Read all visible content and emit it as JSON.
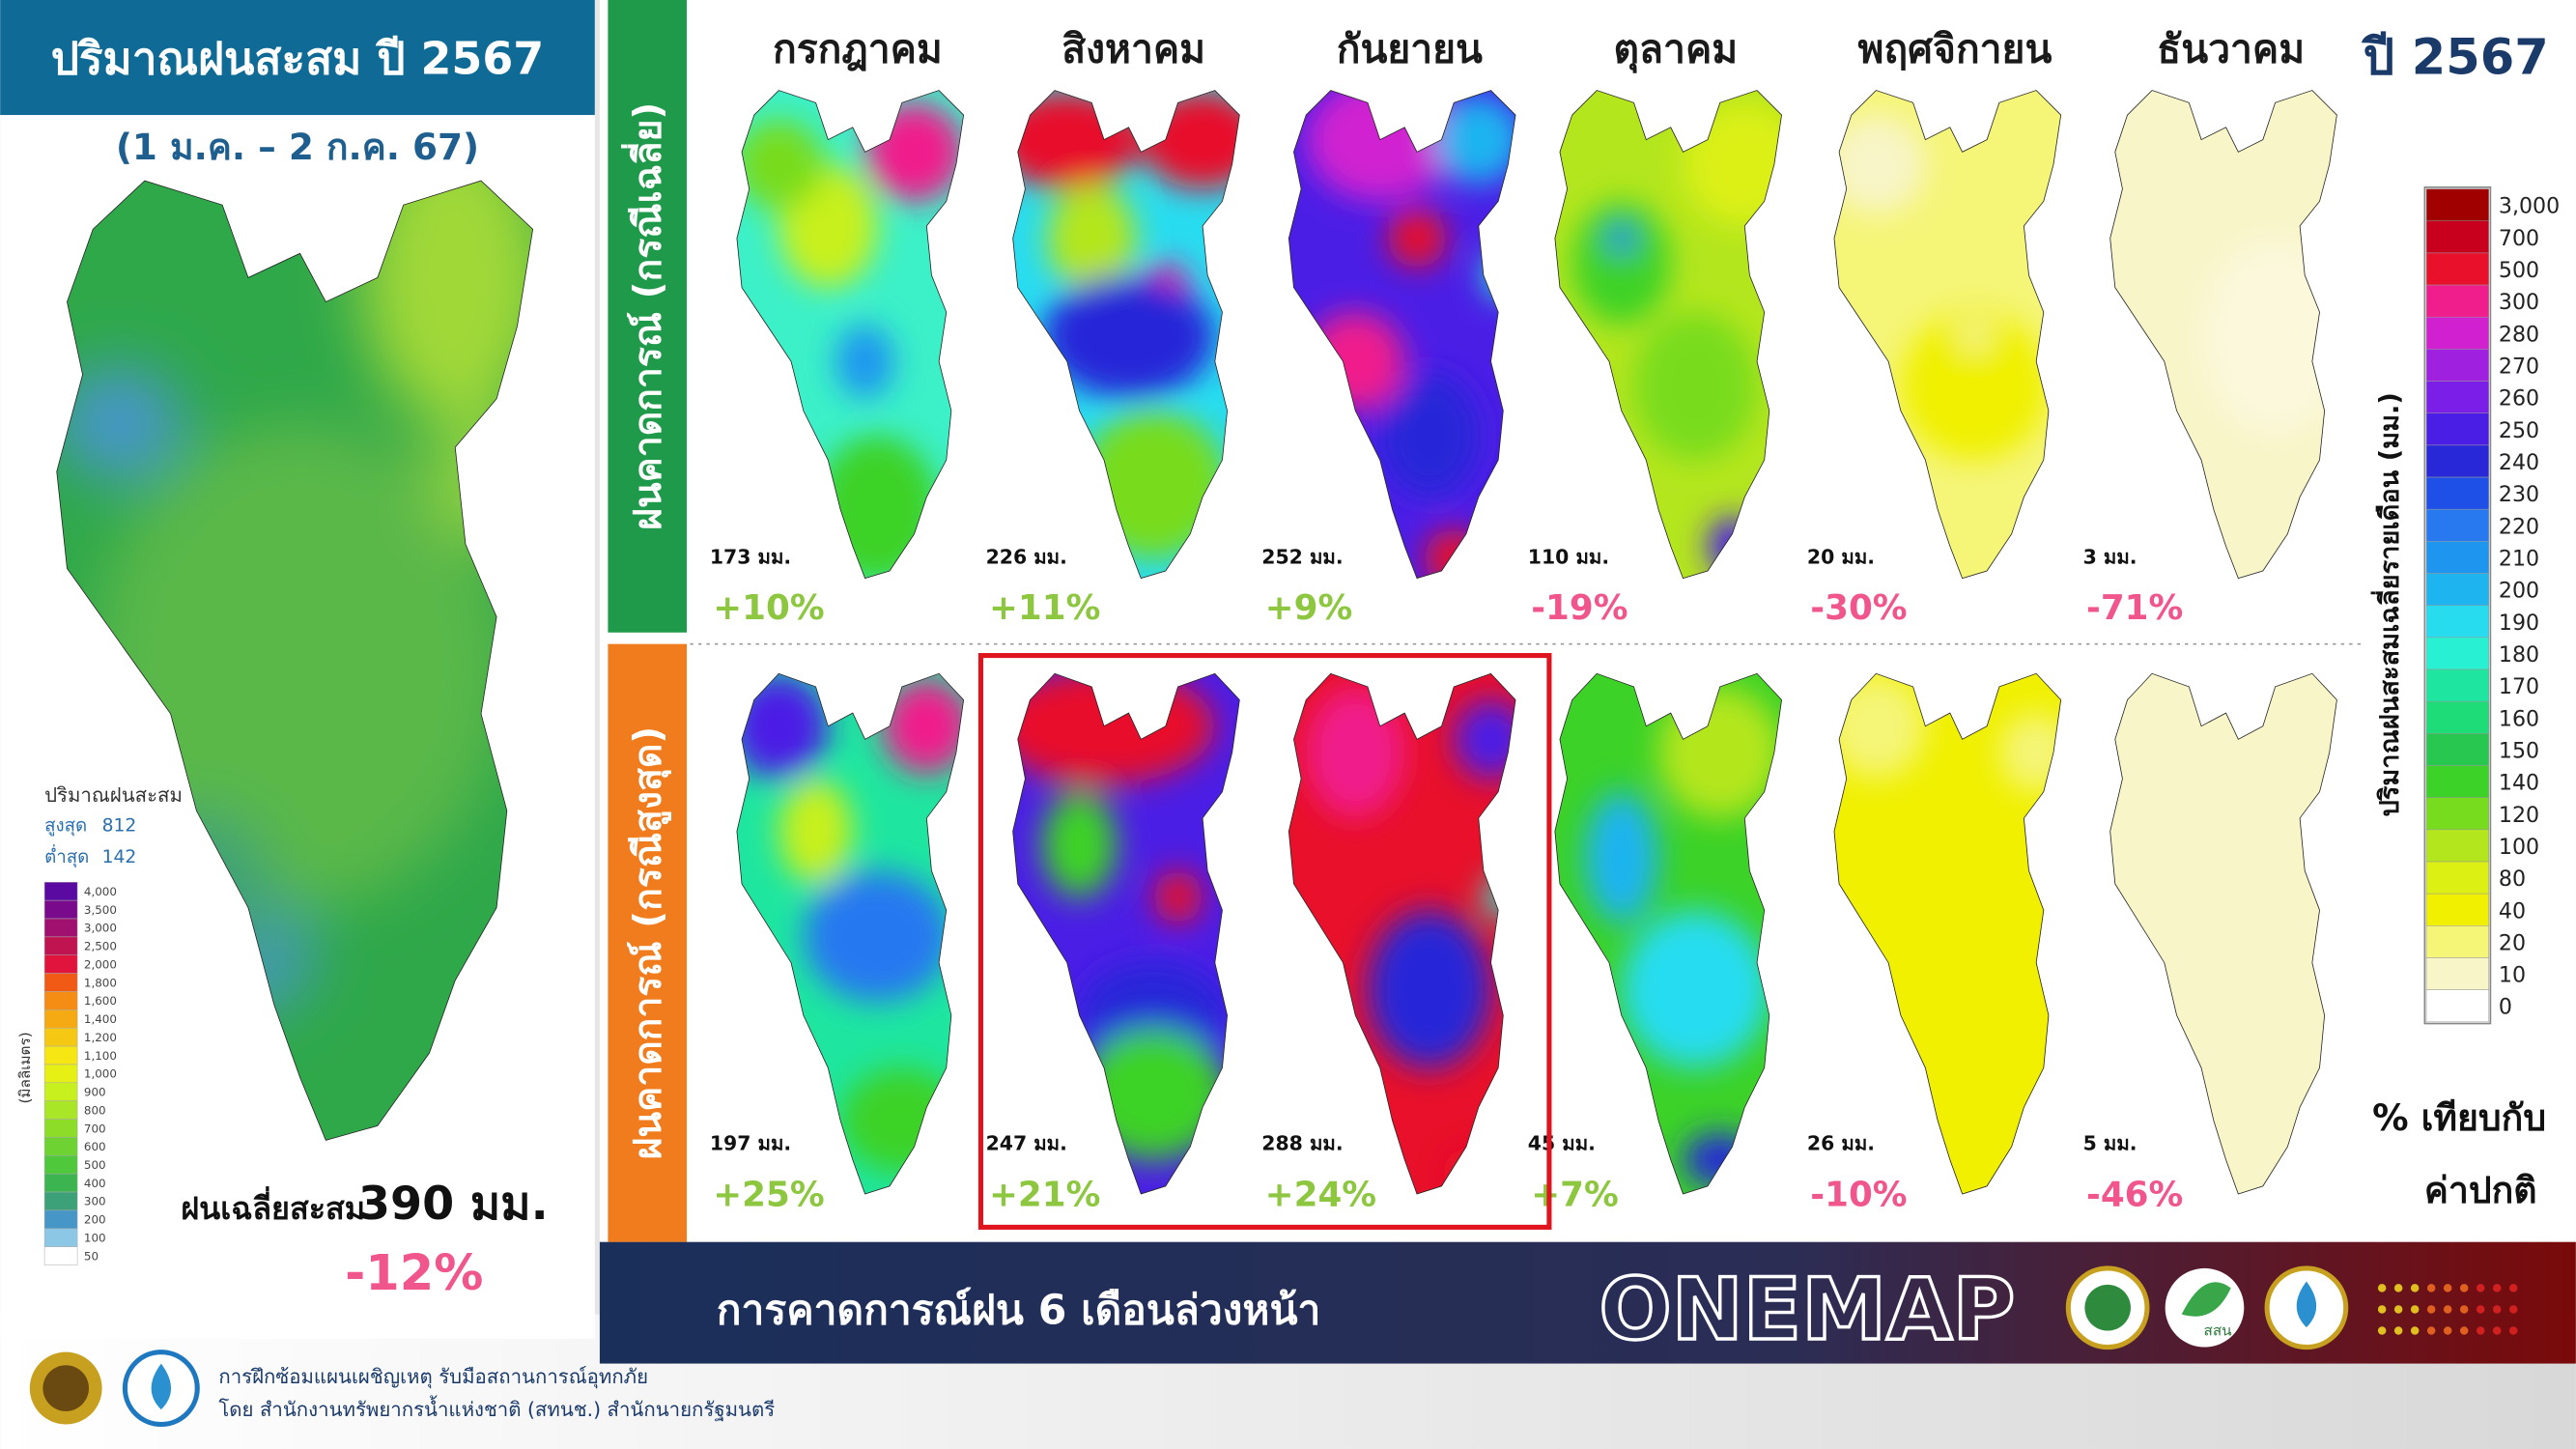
{
  "header": {
    "title": "ปริมาณฝนสะสม ปี 2567",
    "subtitle": "(1 ม.ค. – 2 ก.ค. 67)"
  },
  "summary_legend": {
    "title": "ปริมาณฝนสะสม",
    "max_label": "สูงสุด",
    "max": 812,
    "min_label": "ต่ำสุด",
    "min": 142,
    "unit": "(มิลลิเมตร)",
    "levels": [
      {
        "label": "4,000",
        "color": "#5a0aa0"
      },
      {
        "label": "3,500",
        "color": "#7a0a8c"
      },
      {
        "label": "3,000",
        "color": "#a0106e"
      },
      {
        "label": "2,500",
        "color": "#c01450"
      },
      {
        "label": "2,000",
        "color": "#e0143c"
      },
      {
        "label": "1,800",
        "color": "#f05a14"
      },
      {
        "label": "1,600",
        "color": "#f58c14"
      },
      {
        "label": "1,400",
        "color": "#f5aa14"
      },
      {
        "label": "1,200",
        "color": "#f5c814"
      },
      {
        "label": "1,100",
        "color": "#f5e614"
      },
      {
        "label": "1,000",
        "color": "#e6f014"
      },
      {
        "label": "900",
        "color": "#c8f01e"
      },
      {
        "label": "800",
        "color": "#aae628"
      },
      {
        "label": "700",
        "color": "#8cdc28"
      },
      {
        "label": "600",
        "color": "#6ed232"
      },
      {
        "label": "500",
        "color": "#50c83c"
      },
      {
        "label": "400",
        "color": "#3cb450"
      },
      {
        "label": "300",
        "color": "#3ca078"
      },
      {
        "label": "200",
        "color": "#4696c8"
      },
      {
        "label": "100",
        "color": "#8cc8e6"
      },
      {
        "label": "50",
        "color": "#ffffff"
      }
    ]
  },
  "summary": {
    "label": "ฝนเฉลี่ยสะสม",
    "value": "390 มม.",
    "change": "-12%"
  },
  "year_label": "ปี 2567",
  "months": [
    "กรกฎาคม",
    "สิงหาคม",
    "กันยายน",
    "ตุลาคม",
    "พฤศจิกายน",
    "ธันวาคม"
  ],
  "rows": [
    {
      "label": "ฝนคาดการณ์ (กรณีเฉลี่ย)",
      "color": "#1f9a4a",
      "cells": [
        {
          "rain": "173 มม.",
          "change": "+10%"
        },
        {
          "rain": "226 มม.",
          "change": "+11%"
        },
        {
          "rain": "252 มม.",
          "change": "+9%"
        },
        {
          "rain": "110 มม.",
          "change": "-19%"
        },
        {
          "rain": "20 มม.",
          "change": "-30%"
        },
        {
          "rain": "3 มม.",
          "change": "-71%"
        }
      ]
    },
    {
      "label": "ฝนคาดการณ์ (กรณีสูงสุด)",
      "color": "#f07c1e",
      "cells": [
        {
          "rain": "197 มม.",
          "change": "+25%"
        },
        {
          "rain": "247 มม.",
          "change": "+21%"
        },
        {
          "rain": "288 มม.",
          "change": "+24%"
        },
        {
          "rain": "45 มม.",
          "change": "+7%"
        },
        {
          "rain": "26 มม.",
          "change": "-10%"
        },
        {
          "rain": "5 มม.",
          "change": "-46%"
        }
      ]
    }
  ],
  "legend": {
    "title": "ปริมาณฝนสะสมเฉลี่ยรายเดือน (มม.)",
    "levels": [
      {
        "label": "3,000",
        "color": "#a00000"
      },
      {
        "label": "700",
        "color": "#c8001e"
      },
      {
        "label": "500",
        "color": "#e8102a"
      },
      {
        "label": "300",
        "color": "#f01e8c"
      },
      {
        "label": "280",
        "color": "#d020d0"
      },
      {
        "label": "270",
        "color": "#a020e0"
      },
      {
        "label": "260",
        "color": "#7a1ee8"
      },
      {
        "label": "250",
        "color": "#4b1ee6"
      },
      {
        "label": "240",
        "color": "#2828d8"
      },
      {
        "label": "230",
        "color": "#1e50e8"
      },
      {
        "label": "220",
        "color": "#2878f0"
      },
      {
        "label": "210",
        "color": "#1e96f0"
      },
      {
        "label": "200",
        "color": "#1eb4f0"
      },
      {
        "label": "190",
        "color": "#28dcf0"
      },
      {
        "label": "180",
        "color": "#28f0d2"
      },
      {
        "label": "170",
        "color": "#1ee6a0"
      },
      {
        "label": "160",
        "color": "#1edc78"
      },
      {
        "label": "150",
        "color": "#28c850"
      },
      {
        "label": "140",
        "color": "#3cd228"
      },
      {
        "label": "120",
        "color": "#78dc1e"
      },
      {
        "label": "100",
        "color": "#b4e61e"
      },
      {
        "label": "80",
        "color": "#dcf014"
      },
      {
        "label": "40",
        "color": "#f0f000"
      },
      {
        "label": "20",
        "color": "#f5f578"
      },
      {
        "label": "10",
        "color": "#f8f5c8"
      },
      {
        "label": "0",
        "color": "#ffffff"
      }
    ]
  },
  "comparison": {
    "line1": "% เทียบกับ",
    "line2": "ค่าปกติ"
  },
  "footer": {
    "banner": "การคาดการณ์ฝน 6 เดือนล่วงหน้า",
    "brand": "ONEMAP",
    "logo_text": "สสน",
    "line1": "การฝึกซ้อมแผนเผชิญเหตุ รับมือสถานการณ์อุทกภัย",
    "line2": "โดย สำนักงานทรัพยากรน้ำแห่งชาติ (สทนช.) สำนักนายกรัฐมนตรี"
  }
}
